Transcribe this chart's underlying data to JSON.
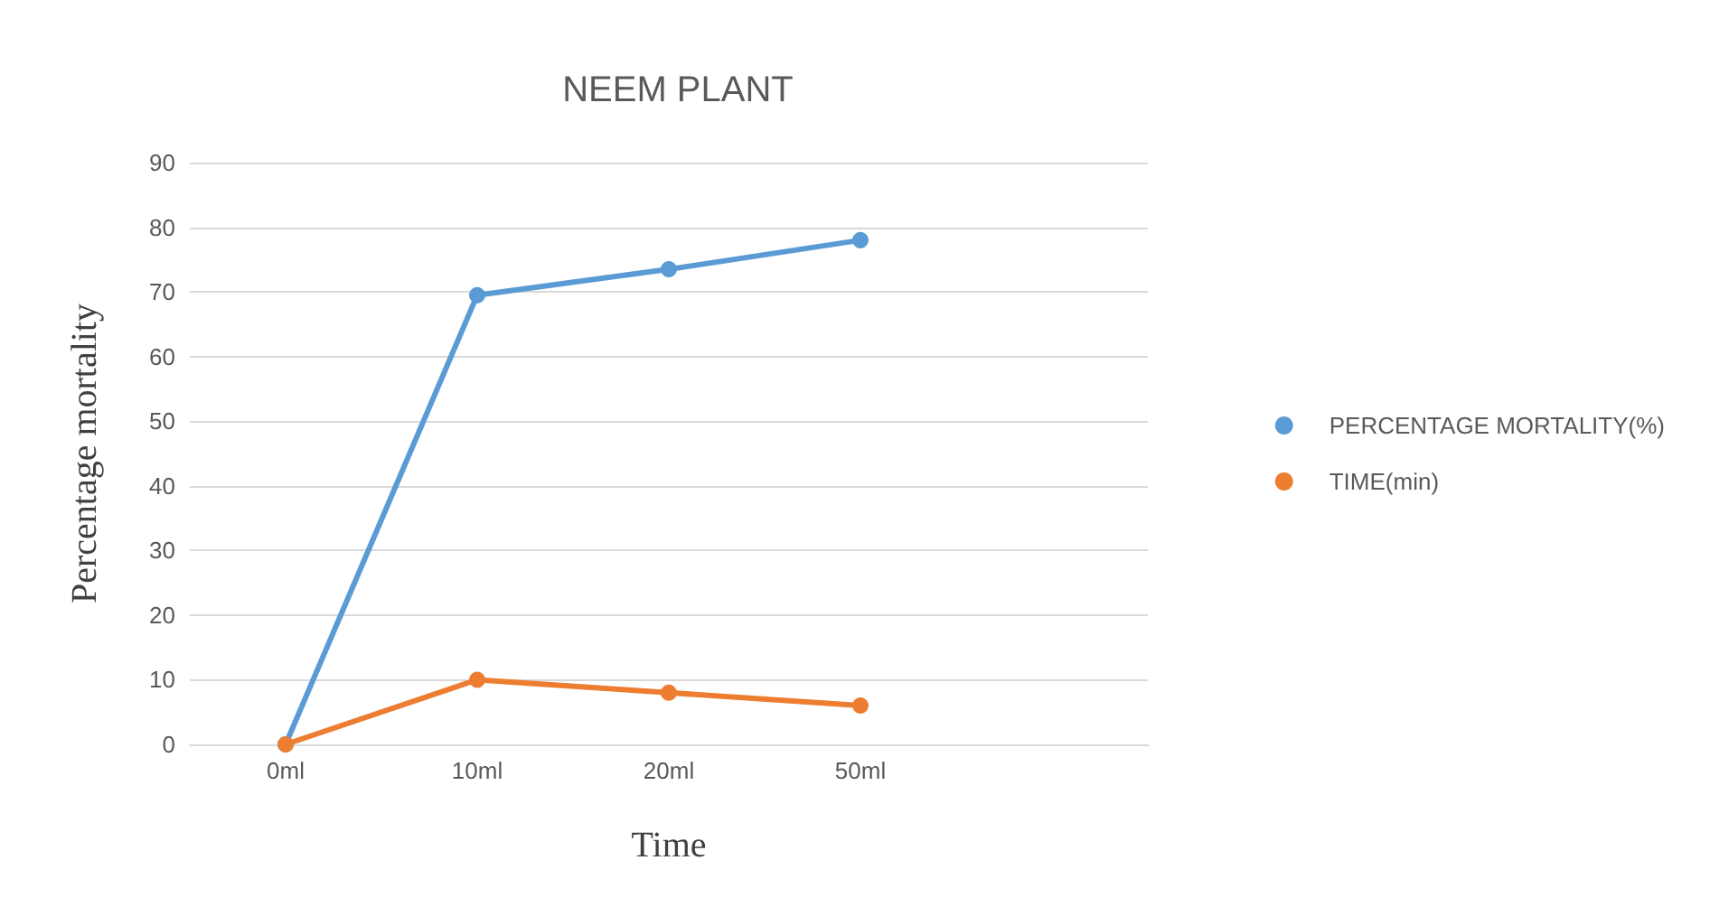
{
  "chart_data": {
    "type": "line",
    "title": "NEEM PLANT",
    "xlabel": "Time",
    "ylabel": "Percentage mortality",
    "categories": [
      "0ml",
      "10ml",
      "20ml",
      "50ml",
      null
    ],
    "series": [
      {
        "name": "PERCENTAGE MORTALITY(%)",
        "color": "#5b9bd5",
        "values": [
          0,
          69.5,
          73.5,
          78,
          null
        ]
      },
      {
        "name": "TIME(min)",
        "color": "#ed7d31",
        "values": [
          0,
          10,
          8,
          6,
          null
        ]
      }
    ],
    "ylim": [
      0,
      90
    ],
    "yticks": [
      0,
      10,
      20,
      30,
      40,
      50,
      60,
      70,
      80,
      90
    ],
    "grid": "y",
    "legend": "right",
    "marker": "circle",
    "line_style": "solid"
  }
}
